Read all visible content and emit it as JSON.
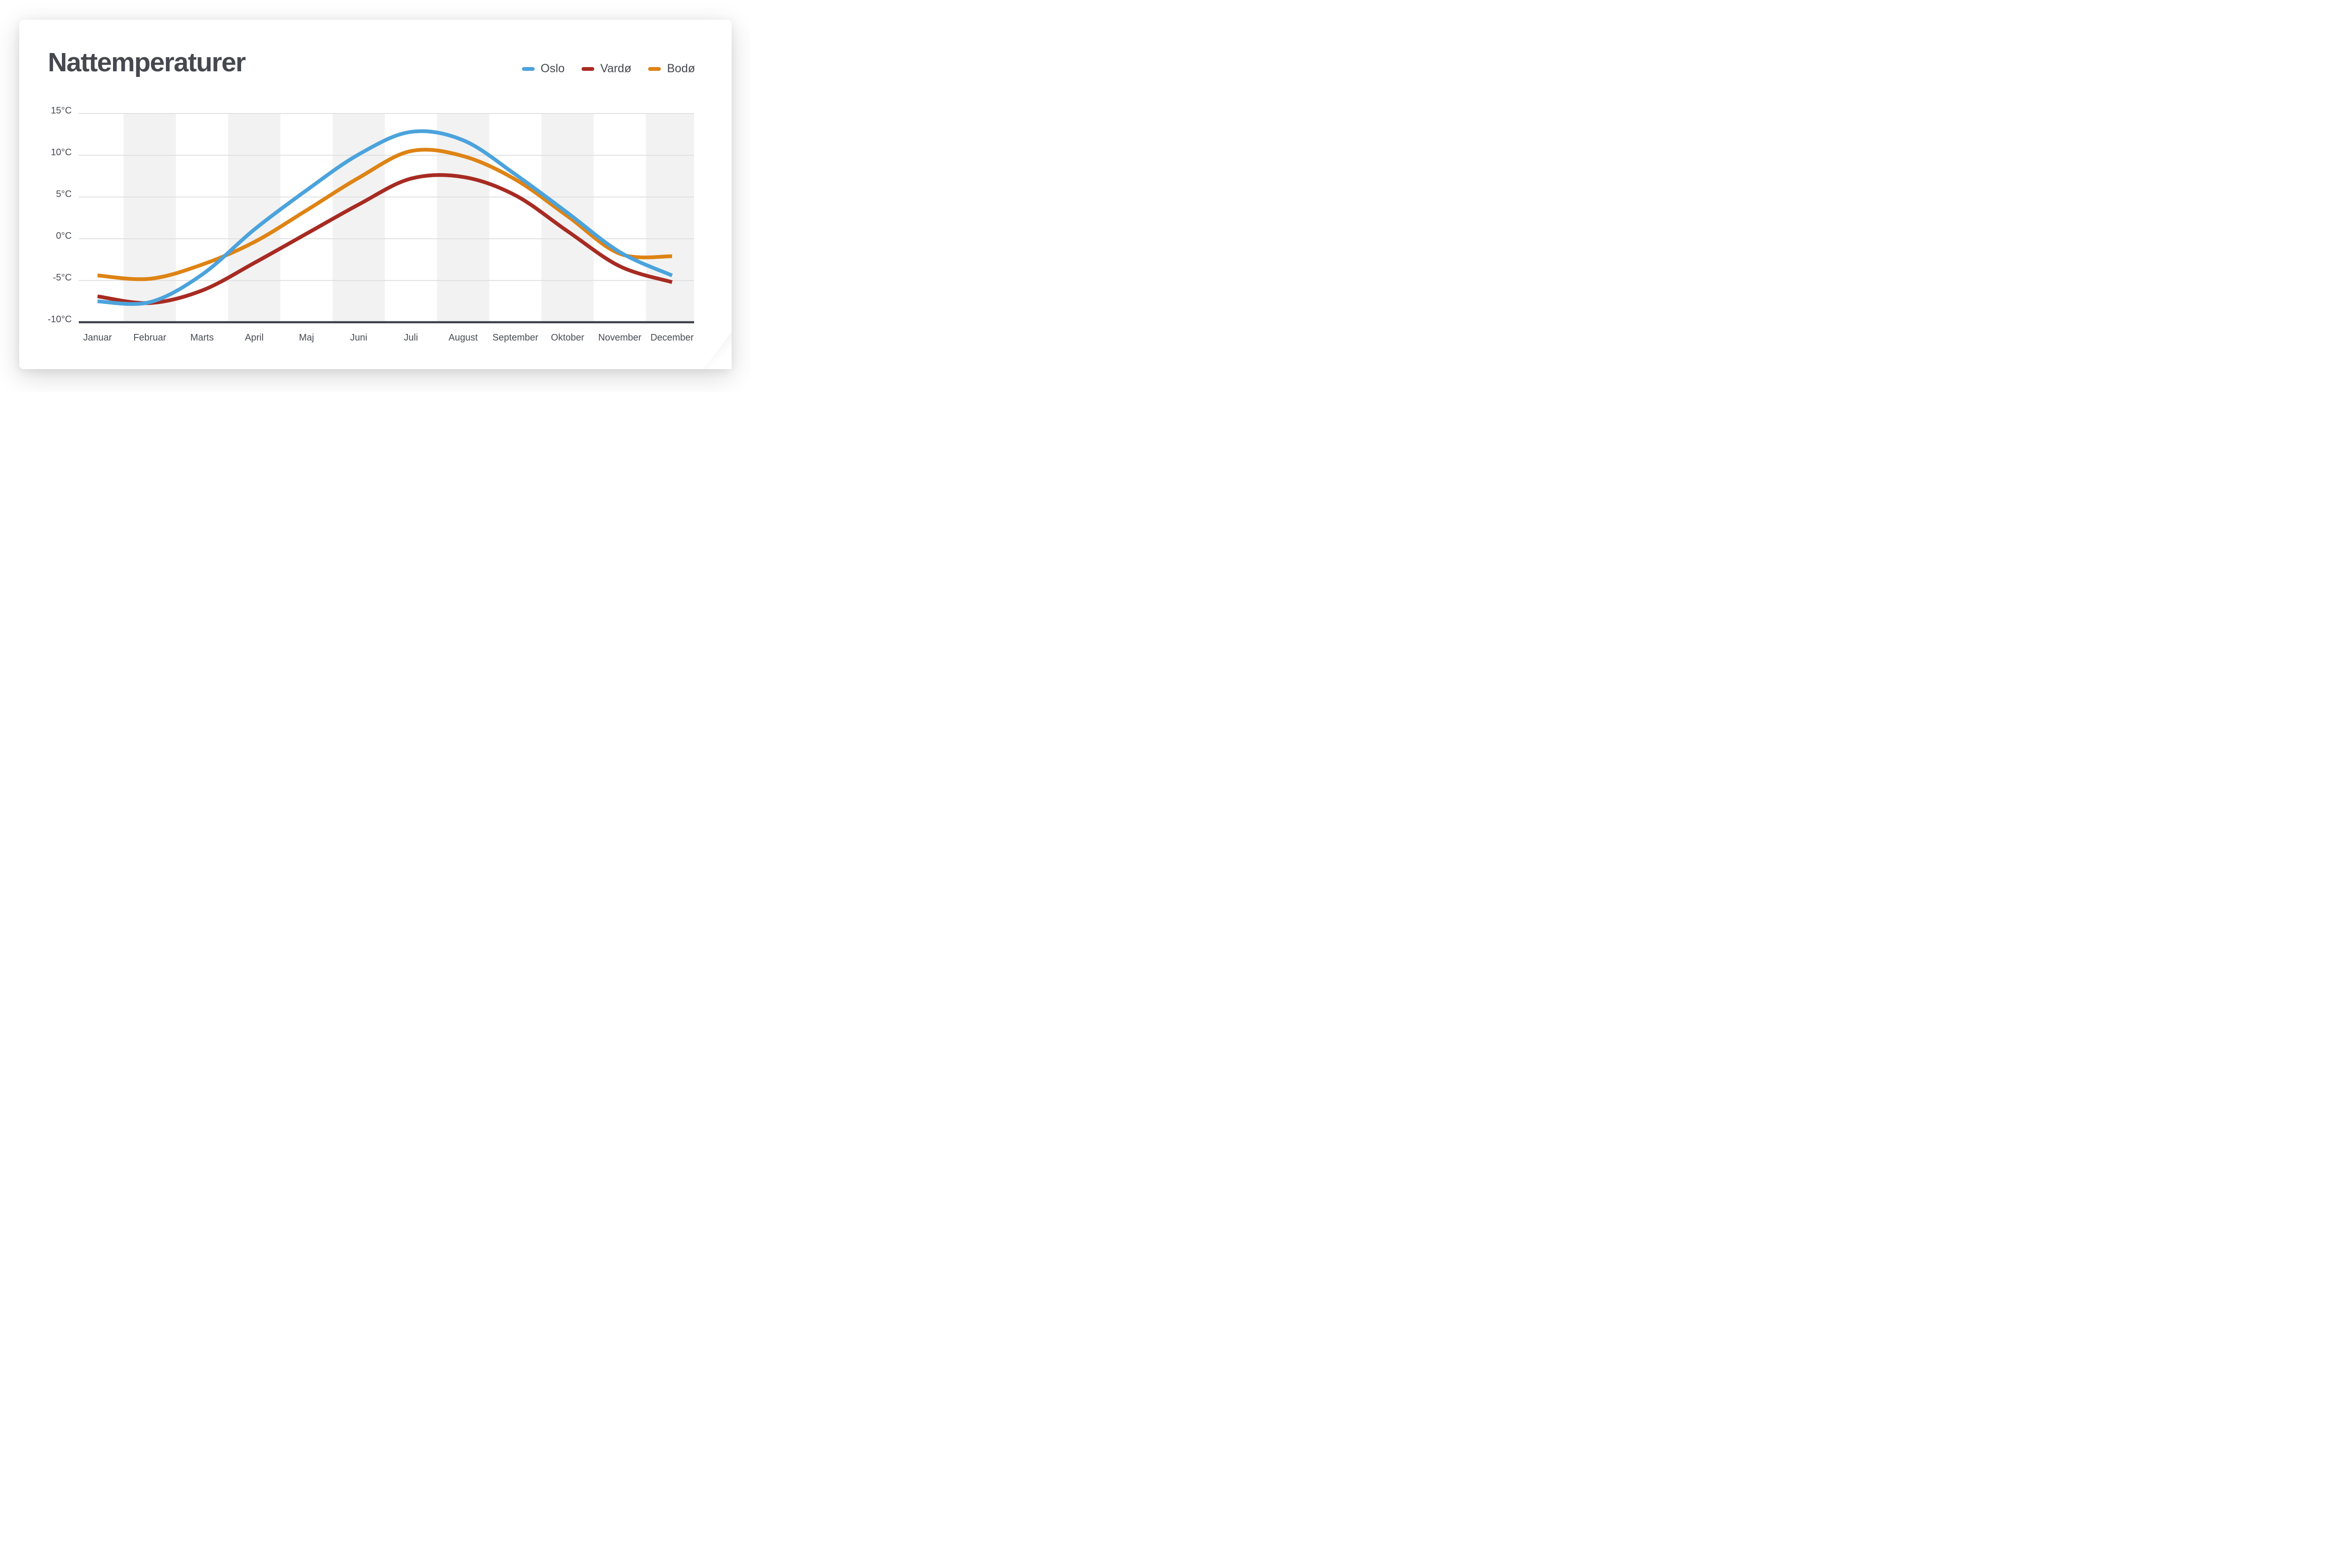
{
  "page": {
    "title": "Nattemperaturer"
  },
  "colors": {
    "oslo": "#4ba3dc",
    "vardo": "#a72b22",
    "bodo": "#de8314",
    "text": "#45484f",
    "grid": "#d9d9d9",
    "axis": "#3c4048",
    "band": "#f2f2f2",
    "card_bg": "#ffffff"
  },
  "chart_data": {
    "type": "line",
    "title": "Nattemperaturer",
    "categories": [
      "Januar",
      "Februar",
      "Marts",
      "April",
      "Maj",
      "Juni",
      "Juli",
      "August",
      "September",
      "Oktober",
      "November",
      "December"
    ],
    "series": [
      {
        "name": "Oslo",
        "color_key": "oslo",
        "values": [
          -7.5,
          -7.6,
          -4.3,
          1.1,
          5.8,
          10.1,
          12.8,
          11.8,
          7.7,
          3.1,
          -1.6,
          -4.4
        ]
      },
      {
        "name": "Vardø",
        "color_key": "vardo",
        "values": [
          -6.9,
          -7.7,
          -6.2,
          -2.9,
          0.6,
          4.1,
          7.2,
          7.4,
          5.2,
          0.9,
          -3.3,
          -5.2
        ]
      },
      {
        "name": "Bodø",
        "color_key": "bodo",
        "values": [
          -4.4,
          -4.8,
          -3.1,
          -0.4,
          3.4,
          7.3,
          10.5,
          9.9,
          7.1,
          2.7,
          -1.8,
          -2.1
        ]
      }
    ],
    "yticks": [
      15,
      10,
      5,
      0,
      -5,
      -10
    ],
    "ytick_labels": [
      "15°C",
      "10°C",
      "5°C",
      "0°C",
      "-5°C",
      "-10°C"
    ],
    "ylim": [
      -10,
      15
    ],
    "unit": "°C",
    "grid": "horizontal",
    "background_bands": "light gray vertical bands on alternating months starting with Februar",
    "legend_position": "top-right",
    "curve_style": "smooth"
  }
}
